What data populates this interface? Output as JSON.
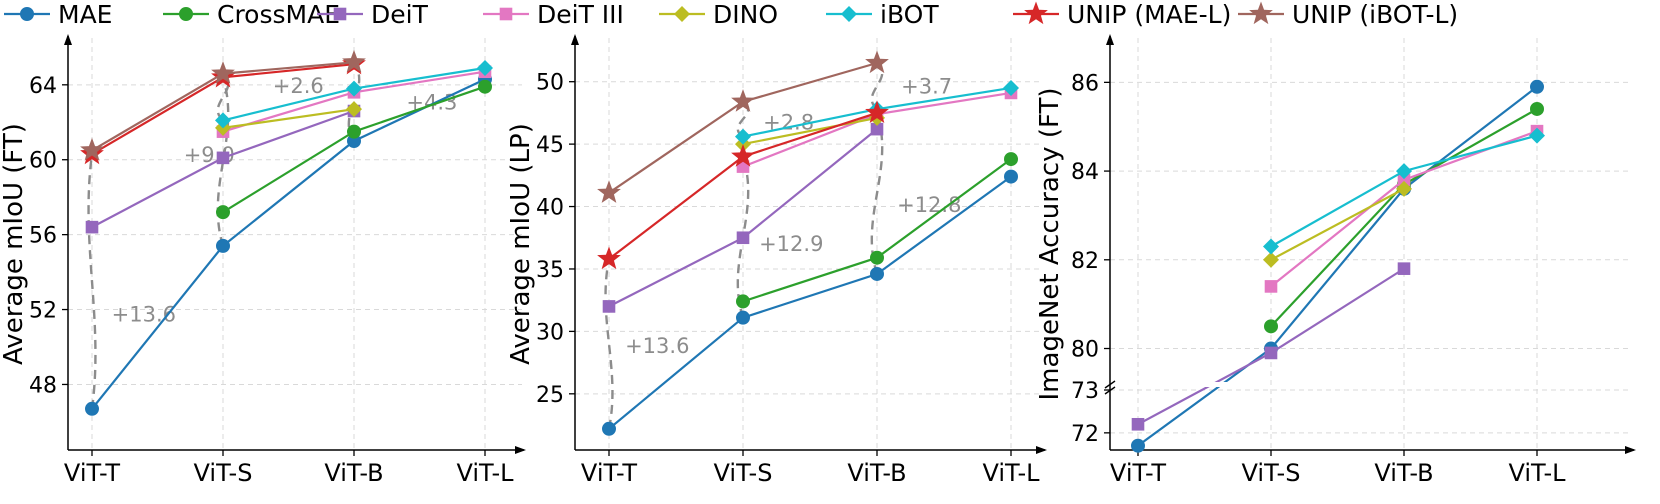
{
  "legend": [
    {
      "name": "MAE",
      "color": "#1f77b4",
      "marker": "circle"
    },
    {
      "name": "CrossMAE",
      "color": "#2ca02c",
      "marker": "circle"
    },
    {
      "name": "DeiT",
      "color": "#9467bd",
      "marker": "square"
    },
    {
      "name": "DeiT III",
      "color": "#e377c2",
      "marker": "square"
    },
    {
      "name": "DINO",
      "color": "#bcbd22",
      "marker": "diamond"
    },
    {
      "name": "iBOT",
      "color": "#17becf",
      "marker": "diamond"
    },
    {
      "name": "UNIP (MAE-L)",
      "color": "#d62728",
      "marker": "star"
    },
    {
      "name": "UNIP (iBOT-L)",
      "color": "#a0665e",
      "marker": "star"
    }
  ],
  "chart_data": [
    {
      "type": "line",
      "categories": [
        "ViT-T",
        "ViT-S",
        "ViT-B",
        "ViT-L"
      ],
      "ylabel": "Average mIoU (FT)",
      "ylim": [
        44.5,
        66.5
      ],
      "yticks": [
        48,
        52,
        56,
        60,
        64
      ],
      "grid": true,
      "series": [
        {
          "name": "MAE",
          "values": [
            46.7,
            55.4,
            61.0,
            64.3
          ]
        },
        {
          "name": "CrossMAE",
          "values": [
            null,
            57.2,
            61.5,
            63.9
          ]
        },
        {
          "name": "DeiT",
          "values": [
            56.4,
            60.1,
            62.6,
            null
          ]
        },
        {
          "name": "DeiT III",
          "values": [
            null,
            61.5,
            63.6,
            64.7
          ]
        },
        {
          "name": "DINO",
          "values": [
            null,
            61.7,
            62.7,
            null
          ]
        },
        {
          "name": "iBOT",
          "values": [
            null,
            62.1,
            63.8,
            64.9
          ]
        },
        {
          "name": "UNIP (MAE-L)",
          "values": [
            60.3,
            64.4,
            65.1,
            null
          ]
        },
        {
          "name": "UNIP (iBOT-L)",
          "values": [
            60.5,
            64.6,
            65.2,
            null
          ]
        }
      ],
      "annotations": [
        {
          "text": "+13.6",
          "cat_from": 0,
          "y_from": 46.7,
          "cat_to": 0,
          "y_to": 60.3,
          "label_x": 0.15,
          "label_y": 51.8
        },
        {
          "text": "+9.0",
          "cat_from": 1,
          "y_from": 55.4,
          "cat_to": 1,
          "y_to": 64.4,
          "label_x": 0.7,
          "label_y": 60.3
        },
        {
          "text": "+2.6",
          "cat_from": 1,
          "y_from": 62.1,
          "cat_to": 1,
          "y_to": 64.6,
          "label_x": 1.38,
          "label_y": 64.0
        },
        {
          "text": "+4.3",
          "cat_from": 2,
          "y_from": 61.0,
          "cat_to": 2,
          "y_to": 65.2,
          "label_x": 2.4,
          "label_y": 63.1
        }
      ]
    },
    {
      "type": "line",
      "categories": [
        "ViT-T",
        "ViT-S",
        "ViT-B",
        "ViT-L"
      ],
      "ylabel": "Average mIoU (LP)",
      "ylim": [
        20.5,
        53.5
      ],
      "yticks": [
        25,
        30,
        35,
        40,
        45,
        50
      ],
      "grid": true,
      "series": [
        {
          "name": "MAE",
          "values": [
            22.2,
            31.1,
            34.6,
            42.4
          ]
        },
        {
          "name": "CrossMAE",
          "values": [
            null,
            32.4,
            35.9,
            43.8
          ]
        },
        {
          "name": "DeiT",
          "values": [
            32.0,
            37.5,
            46.2,
            null
          ]
        },
        {
          "name": "DeiT III",
          "values": [
            null,
            43.2,
            47.4,
            49.1
          ]
        },
        {
          "name": "DINO",
          "values": [
            null,
            45.0,
            47.1,
            null
          ]
        },
        {
          "name": "iBOT",
          "values": [
            null,
            45.6,
            47.8,
            49.5
          ]
        },
        {
          "name": "UNIP (MAE-L)",
          "values": [
            35.8,
            44.0,
            47.5,
            null
          ]
        },
        {
          "name": "UNIP (iBOT-L)",
          "values": [
            41.1,
            48.4,
            51.5,
            null
          ]
        }
      ],
      "annotations": [
        {
          "text": "+13.6",
          "cat_from": 0,
          "y_from": 22.2,
          "cat_to": 0,
          "y_to": 35.8,
          "label_x": 0.12,
          "label_y": 28.9
        },
        {
          "text": "+12.9",
          "cat_from": 1,
          "y_from": 31.1,
          "cat_to": 1,
          "y_to": 44.0,
          "label_x": 1.12,
          "label_y": 37.1
        },
        {
          "text": "+2.8",
          "cat_from": 1,
          "y_from": 45.6,
          "cat_to": 1,
          "y_to": 48.4,
          "label_x": 1.15,
          "label_y": 46.8
        },
        {
          "text": "+12.8",
          "cat_from": 2,
          "y_from": 34.6,
          "cat_to": 2,
          "y_to": 47.5,
          "label_x": 2.15,
          "label_y": 40.2
        },
        {
          "text": "+3.7",
          "cat_from": 2,
          "y_from": 47.8,
          "cat_to": 2,
          "y_to": 51.5,
          "label_x": 2.18,
          "label_y": 49.7
        }
      ]
    },
    {
      "type": "line",
      "categories": [
        "ViT-T",
        "ViT-S",
        "ViT-B",
        "ViT-L"
      ],
      "ylabel": "ImageNet Accuracy (FT)",
      "broken_axis": true,
      "upper_ylim": [
        79.2,
        87.0
      ],
      "upper_yticks": [
        80,
        82,
        84,
        86
      ],
      "lower_ylim": [
        71.6,
        73.0
      ],
      "lower_yticks": [
        72,
        73
      ],
      "grid": true,
      "series": [
        {
          "name": "MAE",
          "values": [
            71.7,
            80.0,
            83.6,
            85.9
          ]
        },
        {
          "name": "CrossMAE",
          "values": [
            null,
            80.5,
            83.7,
            85.4
          ]
        },
        {
          "name": "DeiT",
          "values": [
            72.2,
            79.9,
            81.8,
            null
          ]
        },
        {
          "name": "DeiT III",
          "values": [
            null,
            81.4,
            83.8,
            84.9
          ]
        },
        {
          "name": "DINO",
          "values": [
            null,
            82.0,
            83.6,
            null
          ]
        },
        {
          "name": "iBOT",
          "values": [
            null,
            82.3,
            84.0,
            84.8
          ]
        }
      ]
    }
  ]
}
